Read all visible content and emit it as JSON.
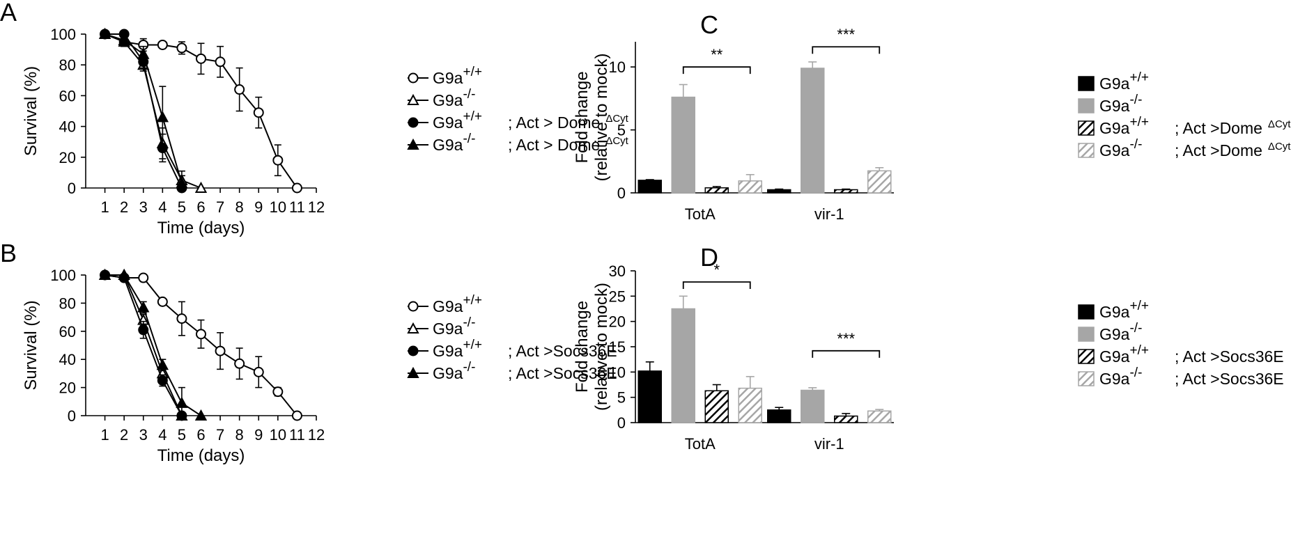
{
  "chart_data": [
    {
      "panel": "A",
      "type": "line",
      "xlabel": "Time (days)",
      "ylabel": "Survival (%)",
      "xlim": [
        0,
        12
      ],
      "ylim": [
        0,
        100
      ],
      "xticks": [
        1,
        2,
        3,
        4,
        5,
        6,
        7,
        8,
        9,
        10,
        11,
        12
      ],
      "yticks": [
        0,
        20,
        40,
        60,
        80,
        100
      ],
      "legend_position": "right",
      "series": [
        {
          "legend": {
            "base": "G9a",
            "sup": "+/+",
            "suffix": "",
            "suffix_sup": ""
          },
          "marker": "circle-open",
          "x": [
            1,
            2,
            3,
            4,
            5,
            6,
            7,
            8,
            9,
            10,
            11
          ],
          "y": [
            100,
            95,
            93,
            93,
            91,
            84,
            82,
            64,
            49,
            18,
            0
          ],
          "err": [
            0,
            3,
            4,
            0,
            4,
            10,
            10,
            14,
            10,
            10,
            0
          ]
        },
        {
          "legend": {
            "base": "G9a",
            "sup": "-/-",
            "suffix": "",
            "suffix_sup": ""
          },
          "marker": "triangle-open",
          "x": [
            1,
            2,
            3,
            4,
            5,
            6
          ],
          "y": [
            100,
            95,
            80,
            29,
            5,
            0
          ],
          "err": [
            0,
            3,
            4,
            10,
            6,
            0
          ]
        },
        {
          "legend": {
            "base": "G9a",
            "sup": "+/+",
            "suffix": "; Act > Dome",
            "suffix_sup": "ΔCyt"
          },
          "marker": "circle-filled",
          "x": [
            1,
            2,
            3,
            4,
            5
          ],
          "y": [
            100,
            100,
            82,
            26,
            0
          ],
          "err": [
            0,
            0,
            4,
            9,
            0
          ]
        },
        {
          "legend": {
            "base": "G9a",
            "sup": "-/-",
            "suffix": "; Act > Dome",
            "suffix_sup": "ΔCyt"
          },
          "marker": "triangle-filled",
          "x": [
            1,
            2,
            3,
            4,
            5
          ],
          "y": [
            100,
            96,
            87,
            46,
            3
          ],
          "err": [
            0,
            3,
            5,
            20,
            5
          ]
        }
      ]
    },
    {
      "panel": "B",
      "type": "line",
      "xlabel": "Time (days)",
      "ylabel": "Survival (%)",
      "xlim": [
        0,
        12
      ],
      "ylim": [
        0,
        100
      ],
      "xticks": [
        1,
        2,
        3,
        4,
        5,
        6,
        7,
        8,
        9,
        10,
        11,
        12
      ],
      "yticks": [
        0,
        20,
        40,
        60,
        80,
        100
      ],
      "legend_position": "right",
      "series": [
        {
          "legend": {
            "base": "G9a",
            "sup": "+/+",
            "suffix": "",
            "suffix_sup": ""
          },
          "marker": "circle-open",
          "x": [
            1,
            2,
            3,
            4,
            5,
            6,
            7,
            8,
            9,
            10,
            11
          ],
          "y": [
            100,
            98,
            98,
            81,
            69,
            58,
            46,
            37,
            31,
            17,
            0
          ],
          "err": [
            0,
            2,
            2,
            0,
            12,
            10,
            13,
            11,
            11,
            3,
            0
          ]
        },
        {
          "legend": {
            "base": "G9a",
            "sup": "-/-",
            "suffix": "",
            "suffix_sup": ""
          },
          "marker": "triangle-open",
          "x": [
            1,
            2,
            3,
            4,
            5
          ],
          "y": [
            100,
            100,
            68,
            30,
            0
          ],
          "err": [
            0,
            0,
            4,
            4,
            0
          ]
        },
        {
          "legend": {
            "base": "G9a",
            "sup": "+/+",
            "suffix": "; Act >Socs36E",
            "suffix_sup": ""
          },
          "marker": "circle-filled",
          "x": [
            1,
            2,
            3,
            4,
            5
          ],
          "y": [
            100,
            98,
            61,
            25,
            0
          ],
          "err": [
            0,
            2,
            6,
            4,
            0
          ]
        },
        {
          "legend": {
            "base": "G9a",
            "sup": "-/-",
            "suffix": "; Act >Socs36E",
            "suffix_sup": ""
          },
          "marker": "triangle-filled",
          "x": [
            1,
            2,
            3,
            4,
            5,
            6
          ],
          "y": [
            100,
            100,
            77,
            36,
            9,
            0
          ],
          "err": [
            0,
            0,
            4,
            4,
            11,
            0
          ]
        }
      ]
    },
    {
      "panel": "C",
      "type": "bar",
      "ylabel": "Fold change",
      "ylabel2": "(relative to mock)",
      "ylim": [
        0,
        12
      ],
      "yticks": [
        0,
        5,
        10
      ],
      "categories": [
        "TotA",
        "vir-1"
      ],
      "legend_position": "right",
      "series": [
        {
          "legend": {
            "base": "G9a",
            "sup": "+/+",
            "suffix": "",
            "suffix_sup": ""
          },
          "style": "black",
          "values": [
            1.0,
            0.25
          ],
          "err": [
            0.05,
            0.05
          ]
        },
        {
          "legend": {
            "base": "G9a",
            "sup": "-/-",
            "suffix": "",
            "suffix_sup": ""
          },
          "style": "gray",
          "values": [
            7.6,
            9.9
          ],
          "err": [
            1.0,
            0.5
          ]
        },
        {
          "legend": {
            "base": "G9a",
            "sup": "+/+",
            "suffix": "; Act >Dome",
            "suffix_sup": "ΔCyt"
          },
          "style": "hatch-black",
          "values": [
            0.4,
            0.25
          ],
          "err": [
            0.1,
            0.05
          ]
        },
        {
          "legend": {
            "base": "G9a",
            "sup": "-/-",
            "suffix": "; Act >Dome",
            "suffix_sup": "ΔCyt"
          },
          "style": "hatch-gray",
          "values": [
            0.95,
            1.75
          ],
          "err": [
            0.5,
            0.25
          ]
        }
      ],
      "significance": [
        {
          "category": 0,
          "label": "**",
          "level": 10.0
        },
        {
          "category": 1,
          "label": "***",
          "level": 11.6
        }
      ]
    },
    {
      "panel": "D",
      "type": "bar",
      "ylabel": "Fold change",
      "ylabel2": "(relative to mock)",
      "ylim": [
        0,
        30
      ],
      "yticks": [
        0,
        5,
        10,
        15,
        20,
        25,
        30
      ],
      "categories": [
        "TotA",
        "vir-1"
      ],
      "legend_position": "right",
      "series": [
        {
          "legend": {
            "base": "G9a",
            "sup": "+/+",
            "suffix": "",
            "suffix_sup": ""
          },
          "style": "black",
          "values": [
            10.2,
            2.5
          ],
          "err": [
            1.8,
            0.5
          ]
        },
        {
          "legend": {
            "base": "G9a",
            "sup": "-/-",
            "suffix": "",
            "suffix_sup": ""
          },
          "style": "gray",
          "values": [
            22.5,
            6.4
          ],
          "err": [
            2.5,
            0.5
          ]
        },
        {
          "legend": {
            "base": "G9a",
            "sup": "+/+",
            "suffix": "; Act >Socs36E",
            "suffix_sup": ""
          },
          "style": "hatch-black",
          "values": [
            6.3,
            1.3
          ],
          "err": [
            1.2,
            0.5
          ]
        },
        {
          "legend": {
            "base": "G9a",
            "sup": "-/-",
            "suffix": "; Act >Socs36E",
            "suffix_sup": ""
          },
          "style": "hatch-gray",
          "values": [
            6.8,
            2.3
          ],
          "err": [
            2.3,
            0.3
          ]
        }
      ],
      "significance": [
        {
          "category": 0,
          "label": "*",
          "level": 27.8
        },
        {
          "category": 1,
          "label": "***",
          "level": 14.2
        }
      ]
    }
  ]
}
